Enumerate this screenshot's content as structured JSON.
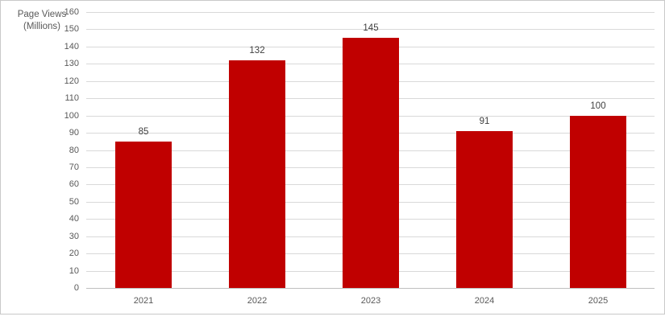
{
  "chart_data": {
    "type": "bar",
    "title": "",
    "axis_title_lines": [
      "Page Views",
      "(Millions)"
    ],
    "ylabel": "Page Views (Millions)",
    "xlabel": "",
    "categories": [
      "2021",
      "2022",
      "2023",
      "2024",
      "2025"
    ],
    "series": [
      {
        "name": "Page Views",
        "values": [
          85,
          132,
          145,
          91,
          100
        ]
      }
    ],
    "data_labels": [
      "85",
      "132",
      "145",
      "91",
      "100"
    ],
    "ylim": [
      0,
      160
    ],
    "ytick_step": 10,
    "ytick_labels": [
      "0",
      "10",
      "20",
      "30",
      "40",
      "50",
      "60",
      "70",
      "80",
      "90",
      "100",
      "110",
      "120",
      "130",
      "140",
      "150",
      "160"
    ],
    "grid": true,
    "legend": "none",
    "colors": {
      "bar": "#c00000",
      "gridline": "#d9d9d9",
      "axis_line": "#bfbfbf",
      "tick_text": "#595959",
      "axis_title_text": "#595959",
      "data_label_text": "#404040",
      "frame_border": "#c9c9c9",
      "background": "#ffffff"
    }
  }
}
